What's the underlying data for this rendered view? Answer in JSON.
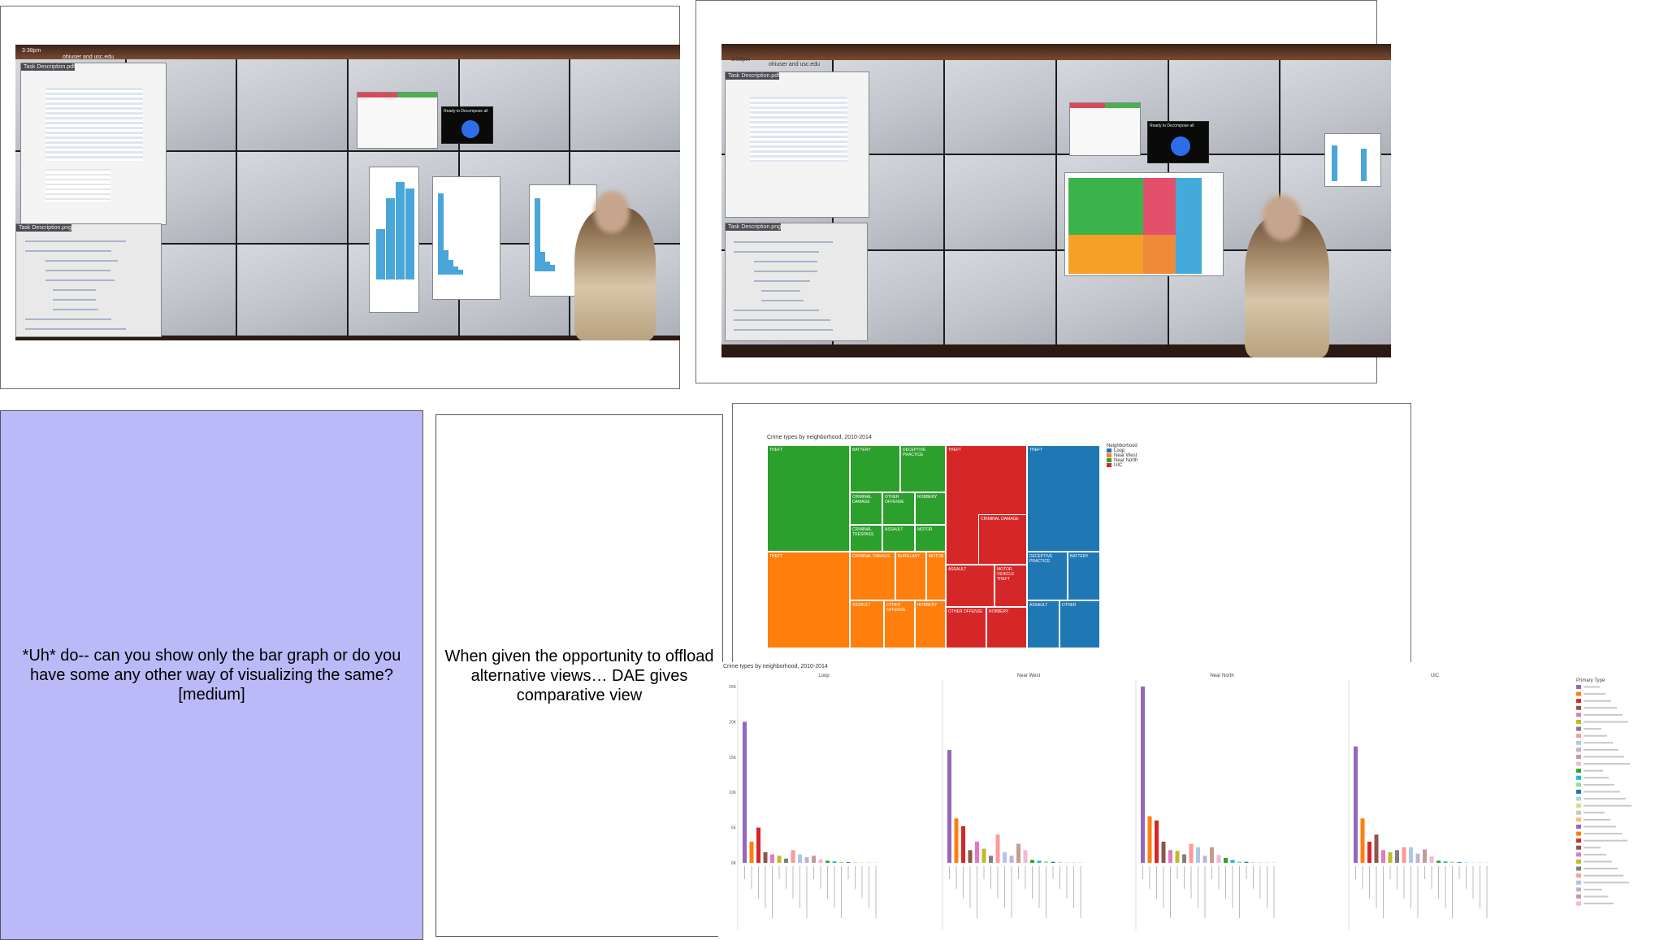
{
  "photos": {
    "left": {
      "clock": "3:38pm",
      "host": "ohiuser and usc.edu",
      "pdf_title": "Task Description.pdf",
      "png_title": "Task Description.png",
      "popup_text": "Ready to Decompose all"
    },
    "right": {
      "clock": "3:59pm",
      "host": "ohiuser and usc.edu",
      "pdf_title": "Task Description.pdf",
      "png_title": "Task Description.png",
      "popup_text": "Ready to Decompose all"
    }
  },
  "quote_box": {
    "text": "*Uh* do-- can you show only the bar graph or do you have some any other way of visualizing the same? [medium]",
    "background": "#b9baf7"
  },
  "caption_box": {
    "text": "When given the opportunity to offload alternative views… DAE gives comparative view"
  },
  "treemap": {
    "title": "Crime types by neighborhood, 2010-2014",
    "legend_title": "Neighborhood",
    "legend": [
      {
        "name": "Loop",
        "color": "#1f77b4"
      },
      {
        "name": "Near West",
        "color": "#ff7f0e"
      },
      {
        "name": "Near North",
        "color": "#2ca02c"
      },
      {
        "name": "UIC",
        "color": "#d62728"
      }
    ]
  },
  "bar_panel": {
    "title": "Crime types by neighborhood, 2010-2014",
    "facets": [
      "Loop",
      "Near West",
      "Near North",
      "UIC"
    ],
    "legend_title": "Primary Type",
    "y_ticks": [
      "25K",
      "20K",
      "15K",
      "10K",
      "5K",
      "0K"
    ]
  },
  "chart_data": {
    "type": "bar",
    "title": "Crime types by neighborhood, 2010-2014",
    "facets": [
      "Loop",
      "Near West",
      "Near North",
      "UIC"
    ],
    "ylim": [
      0,
      25000
    ],
    "series": [
      {
        "name": "Loop",
        "values": [
          20000,
          3000,
          5000,
          1500,
          1200,
          1000,
          600,
          1800,
          1200,
          800,
          1000,
          500,
          300,
          200,
          150,
          100,
          80,
          60,
          50,
          40
        ]
      },
      {
        "name": "Near West",
        "values": [
          16000,
          6300,
          5200,
          1800,
          3000,
          2000,
          1000,
          4000,
          1500,
          1000,
          2700,
          1800,
          400,
          300,
          200,
          150,
          100,
          80,
          60,
          50
        ]
      },
      {
        "name": "Near North",
        "values": [
          25000,
          6600,
          6000,
          3000,
          1800,
          1700,
          1200,
          2700,
          2200,
          1000,
          2200,
          1100,
          700,
          400,
          200,
          150,
          100,
          80,
          60,
          50
        ]
      },
      {
        "name": "UIC",
        "values": [
          16500,
          6300,
          3000,
          4000,
          1800,
          1500,
          1800,
          2200,
          2200,
          1300,
          1900,
          900,
          300,
          200,
          150,
          100,
          80,
          60,
          50,
          40
        ]
      }
    ]
  }
}
